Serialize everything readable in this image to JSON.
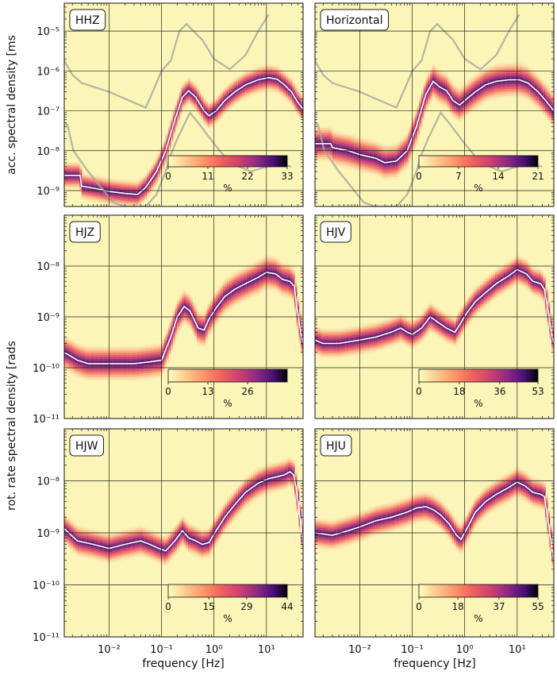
{
  "figure": {
    "xlabel": "frequency [Hz]",
    "ylabel_acc": "acc. spectral density [ms⁻²Hz⁻¹ᐟ²]",
    "ylabel_acc_main": "acc. spectral density [ms",
    "ylabel_rot_main": "rot. rate spectral density [rads",
    "colorbar_unit": "%",
    "colors": {
      "panel_bg": "#fbf6b7",
      "median_line": "#ffffff",
      "model_line": "#a8a8a0",
      "grid": "#222222"
    }
  },
  "chart_data": [
    {
      "type": "heatmap",
      "panel": "HHZ",
      "title": "HHZ",
      "xscale": "log",
      "yscale": "log",
      "xlim": [
        0.0014,
        50
      ],
      "ylim": [
        4e-10,
        5e-05
      ],
      "x_ticks": [
        "10⁻²",
        "10⁻¹",
        "10⁰",
        "10¹"
      ],
      "y_ticks": [
        "10⁻⁹",
        "10⁻⁸",
        "10⁻⁷",
        "10⁻⁶",
        "10⁻⁵"
      ],
      "colorbar": {
        "ticks": [
          "0",
          "11",
          "22",
          "33"
        ],
        "max": 33
      },
      "median": [
        [
          0.0014,
          2.4e-09
        ],
        [
          0.0028,
          2.4e-09
        ],
        [
          0.003,
          1.3e-09
        ],
        [
          0.006,
          1.1e-09
        ],
        [
          0.01,
          9.5e-10
        ],
        [
          0.02,
          8.5e-10
        ],
        [
          0.035,
          8e-10
        ],
        [
          0.05,
          1.2e-09
        ],
        [
          0.08,
          3e-09
        ],
        [
          0.12,
          1e-08
        ],
        [
          0.18,
          6e-08
        ],
        [
          0.25,
          2.2e-07
        ],
        [
          0.33,
          3.2e-07
        ],
        [
          0.45,
          2.2e-07
        ],
        [
          0.65,
          1e-07
        ],
        [
          0.8,
          7.5e-08
        ],
        [
          1.1,
          1e-07
        ],
        [
          1.6,
          1.8e-07
        ],
        [
          2.5,
          3e-07
        ],
        [
          4,
          4.5e-07
        ],
        [
          7,
          6e-07
        ],
        [
          11,
          6.8e-07
        ],
        [
          16,
          6.2e-07
        ],
        [
          22,
          4.5e-07
        ],
        [
          30,
          3e-07
        ],
        [
          40,
          1.6e-07
        ],
        [
          50,
          1.1e-07
        ]
      ],
      "nhnm": [
        [
          0.0014,
          4.6e-08
        ],
        [
          0.0016,
          4.6e-08
        ],
        [
          0.0021,
          1e-08
        ],
        [
          0.004,
          3e-09
        ],
        [
          0.007,
          1.2e-09
        ],
        [
          0.012,
          5e-10
        ],
        [
          0.02,
          4e-10
        ],
        [
          0.05,
          4e-10
        ],
        [
          0.08,
          8e-10
        ],
        [
          0.12,
          3e-09
        ],
        [
          0.15,
          8e-09
        ],
        [
          0.2,
          2e-08
        ],
        [
          0.3,
          6e-08
        ],
        [
          0.35,
          9e-08
        ],
        [
          0.5,
          5e-08
        ],
        [
          1,
          1.5e-08
        ],
        [
          2,
          5e-09
        ],
        [
          5,
          3e-09
        ],
        [
          10,
          4e-09
        ],
        [
          20,
          4.5e-09
        ],
        [
          30,
          4e-09
        ]
      ],
      "nlnm": [
        [
          0.0014,
          1.8e-06
        ],
        [
          0.002,
          8e-07
        ],
        [
          0.003,
          5e-07
        ],
        [
          0.01,
          3e-07
        ],
        [
          0.03,
          1.6e-07
        ],
        [
          0.05,
          1.2e-07
        ],
        [
          0.08,
          5e-07
        ],
        [
          0.1,
          1e-06
        ],
        [
          0.15,
          1.8e-06
        ],
        [
          0.22,
          1e-05
        ],
        [
          0.3,
          1.5e-05
        ],
        [
          0.6,
          6e-06
        ],
        [
          1,
          2e-06
        ],
        [
          2,
          1.1e-06
        ],
        [
          4,
          2.5e-06
        ],
        [
          7,
          1e-05
        ],
        [
          11,
          2.6e-05
        ]
      ],
      "distribution": {
        "spread": 0.35
      }
    },
    {
      "type": "heatmap",
      "panel": "Horizontal",
      "title": "Horizontal",
      "xscale": "log",
      "yscale": "log",
      "xlim": [
        0.0014,
        50
      ],
      "ylim": [
        4e-10,
        5e-05
      ],
      "x_ticks": [
        "10⁻²",
        "10⁻¹",
        "10⁰",
        "10¹"
      ],
      "y_ticks": [
        "10⁻⁹",
        "10⁻⁸",
        "10⁻⁷",
        "10⁻⁶",
        "10⁻⁵"
      ],
      "colorbar": {
        "ticks": [
          "0",
          "7",
          "14",
          "21"
        ],
        "max": 21
      },
      "median": [
        [
          0.0014,
          1.5e-08
        ],
        [
          0.0028,
          1.5e-08
        ],
        [
          0.003,
          1.2e-08
        ],
        [
          0.006,
          1e-08
        ],
        [
          0.01,
          8e-09
        ],
        [
          0.02,
          6.5e-09
        ],
        [
          0.03,
          5e-09
        ],
        [
          0.05,
          5.5e-09
        ],
        [
          0.08,
          1e-08
        ],
        [
          0.12,
          4e-08
        ],
        [
          0.18,
          2.5e-07
        ],
        [
          0.25,
          5.5e-07
        ],
        [
          0.33,
          4e-07
        ],
        [
          0.45,
          3.2e-07
        ],
        [
          0.6,
          1.8e-07
        ],
        [
          0.8,
          1.4e-07
        ],
        [
          1.1,
          2e-07
        ],
        [
          1.6,
          3e-07
        ],
        [
          2.5,
          4.5e-07
        ],
        [
          4,
          5.5e-07
        ],
        [
          7,
          6e-07
        ],
        [
          11,
          6e-07
        ],
        [
          16,
          5e-07
        ],
        [
          25,
          3e-07
        ],
        [
          35,
          1.8e-07
        ],
        [
          50,
          1e-07
        ]
      ],
      "nhnm": [
        [
          0.0014,
          4.6e-08
        ],
        [
          0.0016,
          4.6e-08
        ],
        [
          0.0021,
          1e-08
        ],
        [
          0.004,
          3e-09
        ],
        [
          0.007,
          1.2e-09
        ],
        [
          0.012,
          5e-10
        ],
        [
          0.02,
          4e-10
        ],
        [
          0.05,
          4e-10
        ],
        [
          0.08,
          8e-10
        ],
        [
          0.12,
          3e-09
        ],
        [
          0.15,
          8e-09
        ],
        [
          0.2,
          2e-08
        ],
        [
          0.3,
          6e-08
        ],
        [
          0.35,
          9e-08
        ],
        [
          0.5,
          5e-08
        ],
        [
          1,
          1.5e-08
        ],
        [
          2,
          5e-09
        ],
        [
          5,
          3e-09
        ],
        [
          10,
          4e-09
        ],
        [
          20,
          4.5e-09
        ],
        [
          30,
          4e-09
        ]
      ],
      "nlnm": [
        [
          0.0014,
          1.8e-06
        ],
        [
          0.002,
          8e-07
        ],
        [
          0.003,
          5e-07
        ],
        [
          0.01,
          3e-07
        ],
        [
          0.03,
          1.6e-07
        ],
        [
          0.05,
          1.2e-07
        ],
        [
          0.08,
          5e-07
        ],
        [
          0.1,
          1e-06
        ],
        [
          0.15,
          1.8e-06
        ],
        [
          0.22,
          1e-05
        ],
        [
          0.3,
          1.5e-05
        ],
        [
          0.6,
          6e-06
        ],
        [
          1,
          2e-06
        ],
        [
          2,
          1.1e-06
        ],
        [
          4,
          2.5e-06
        ],
        [
          7,
          1e-05
        ],
        [
          11,
          2.6e-05
        ]
      ],
      "distribution": {
        "spread": 0.45
      }
    },
    {
      "type": "heatmap",
      "panel": "HJZ",
      "title": "HJZ",
      "xscale": "log",
      "yscale": "log",
      "xlim": [
        0.0014,
        50
      ],
      "ylim": [
        1e-12,
        1e-08
      ],
      "x_ticks": [
        "10⁻²",
        "10⁻¹",
        "10⁰",
        "10¹"
      ],
      "y_ticks": [
        "10⁻¹¹",
        "10⁻¹⁰",
        "10⁻⁹",
        "10⁻⁸"
      ],
      "colorbar": {
        "ticks": [
          "0",
          "13",
          "26"
        ],
        "max": 39
      },
      "median": [
        [
          0.0014,
          2e-11
        ],
        [
          0.0025,
          1.4e-11
        ],
        [
          0.004,
          1.2e-11
        ],
        [
          0.01,
          1.2e-11
        ],
        [
          0.03,
          1.2e-11
        ],
        [
          0.06,
          1.3e-11
        ],
        [
          0.1,
          1.4e-11
        ],
        [
          0.15,
          4e-11
        ],
        [
          0.2,
          1e-10
        ],
        [
          0.27,
          1.6e-10
        ],
        [
          0.35,
          1.3e-10
        ],
        [
          0.5,
          6e-11
        ],
        [
          0.65,
          5.5e-11
        ],
        [
          0.8,
          9e-11
        ],
        [
          1.1,
          1.5e-10
        ],
        [
          1.6,
          2.5e-10
        ],
        [
          2.5,
          3.5e-10
        ],
        [
          4,
          4.5e-10
        ],
        [
          7,
          6e-10
        ],
        [
          10,
          7.5e-10
        ],
        [
          15,
          7e-10
        ],
        [
          20,
          5.5e-10
        ],
        [
          28,
          5e-10
        ],
        [
          34,
          4e-10
        ],
        [
          38,
          1.5e-10
        ],
        [
          45,
          5e-11
        ],
        [
          50,
          3e-11
        ]
      ],
      "distribution": {
        "spread": 0.35
      }
    },
    {
      "type": "heatmap",
      "panel": "HJV",
      "title": "HJV",
      "xscale": "log",
      "yscale": "log",
      "xlim": [
        0.0014,
        50
      ],
      "ylim": [
        1e-12,
        1e-08
      ],
      "x_ticks": [
        "10⁻²",
        "10⁻¹",
        "10⁰",
        "10¹"
      ],
      "y_ticks": [
        "10⁻¹¹",
        "10⁻¹⁰",
        "10⁻⁹",
        "10⁻⁸"
      ],
      "colorbar": {
        "ticks": [
          "0",
          "18",
          "36",
          "53"
        ],
        "max": 53
      },
      "median": [
        [
          0.0014,
          3.5e-11
        ],
        [
          0.002,
          3e-11
        ],
        [
          0.004,
          3e-11
        ],
        [
          0.01,
          3.5e-11
        ],
        [
          0.02,
          4e-11
        ],
        [
          0.04,
          5e-11
        ],
        [
          0.06,
          6e-11
        ],
        [
          0.08,
          5e-11
        ],
        [
          0.1,
          4.5e-11
        ],
        [
          0.15,
          6e-11
        ],
        [
          0.22,
          1e-10
        ],
        [
          0.3,
          8e-11
        ],
        [
          0.45,
          6e-11
        ],
        [
          0.65,
          5e-11
        ],
        [
          0.8,
          7e-11
        ],
        [
          1.1,
          1.2e-10
        ],
        [
          1.6,
          2e-10
        ],
        [
          2.5,
          3e-10
        ],
        [
          4,
          4.5e-10
        ],
        [
          7,
          6.5e-10
        ],
        [
          10,
          8.5e-10
        ],
        [
          15,
          7e-10
        ],
        [
          20,
          5e-10
        ],
        [
          28,
          4.5e-10
        ],
        [
          33,
          3.5e-10
        ],
        [
          38,
          1.5e-10
        ],
        [
          45,
          5e-11
        ],
        [
          50,
          3e-11
        ]
      ],
      "distribution": {
        "spread": 0.3
      }
    },
    {
      "type": "heatmap",
      "panel": "HJW",
      "title": "HJW",
      "xscale": "log",
      "yscale": "log",
      "xlim": [
        0.0014,
        50
      ],
      "ylim": [
        1e-12,
        1e-08
      ],
      "x_ticks": [
        "10⁻²",
        "10⁻¹",
        "10⁰",
        "10¹"
      ],
      "y_ticks": [
        "10⁻¹¹",
        "10⁻¹⁰",
        "10⁻⁹",
        "10⁻⁸"
      ],
      "colorbar": {
        "ticks": [
          "0",
          "15",
          "29",
          "44"
        ],
        "max": 44
      },
      "median": [
        [
          0.0014,
          1.2e-10
        ],
        [
          0.0025,
          7e-11
        ],
        [
          0.005,
          6e-11
        ],
        [
          0.01,
          5e-11
        ],
        [
          0.02,
          6e-11
        ],
        [
          0.04,
          7e-11
        ],
        [
          0.06,
          6e-11
        ],
        [
          0.09,
          5e-11
        ],
        [
          0.12,
          4.5e-11
        ],
        [
          0.18,
          7e-11
        ],
        [
          0.25,
          1.1e-10
        ],
        [
          0.33,
          8e-11
        ],
        [
          0.45,
          7e-11
        ],
        [
          0.6,
          6e-11
        ],
        [
          0.8,
          6.5e-11
        ],
        [
          1.1,
          1.1e-10
        ],
        [
          1.6,
          2e-10
        ],
        [
          2.5,
          3.5e-10
        ],
        [
          4,
          6e-10
        ],
        [
          7,
          9e-10
        ],
        [
          11,
          1.1e-09
        ],
        [
          16,
          1.2e-09
        ],
        [
          22,
          1.3e-09
        ],
        [
          28,
          1.5e-09
        ],
        [
          33,
          1.3e-09
        ],
        [
          38,
          6e-10
        ],
        [
          45,
          1.5e-10
        ],
        [
          50,
          6e-11
        ]
      ],
      "distribution": {
        "spread": 0.3
      }
    },
    {
      "type": "heatmap",
      "panel": "HJU",
      "title": "HJU",
      "xscale": "log",
      "yscale": "log",
      "xlim": [
        0.0014,
        50
      ],
      "ylim": [
        1e-12,
        1e-08
      ],
      "x_ticks": [
        "10⁻²",
        "10⁻¹",
        "10⁰",
        "10¹"
      ],
      "y_ticks": [
        "10⁻¹¹",
        "10⁻¹⁰",
        "10⁻⁹",
        "10⁻⁸"
      ],
      "colorbar": {
        "ticks": [
          "0",
          "18",
          "37",
          "55"
        ],
        "max": 55
      },
      "median": [
        [
          0.0014,
          1e-10
        ],
        [
          0.003,
          9e-11
        ],
        [
          0.006,
          1.1e-10
        ],
        [
          0.01,
          1.3e-10
        ],
        [
          0.02,
          1.7e-10
        ],
        [
          0.04,
          2e-10
        ],
        [
          0.08,
          2.5e-10
        ],
        [
          0.12,
          3e-10
        ],
        [
          0.18,
          3.2e-10
        ],
        [
          0.25,
          2.8e-10
        ],
        [
          0.35,
          2.2e-10
        ],
        [
          0.5,
          1.5e-10
        ],
        [
          0.7,
          9e-11
        ],
        [
          0.85,
          7.5e-11
        ],
        [
          1.1,
          1.2e-10
        ],
        [
          1.6,
          2.5e-10
        ],
        [
          2.5,
          4e-10
        ],
        [
          4,
          5.5e-10
        ],
        [
          7,
          7.5e-10
        ],
        [
          10,
          9.5e-10
        ],
        [
          14,
          8e-10
        ],
        [
          20,
          6e-10
        ],
        [
          28,
          5.5e-10
        ],
        [
          33,
          5e-10
        ],
        [
          38,
          2e-10
        ],
        [
          45,
          6e-11
        ],
        [
          50,
          3e-11
        ]
      ],
      "distribution": {
        "spread": 0.3
      }
    }
  ]
}
